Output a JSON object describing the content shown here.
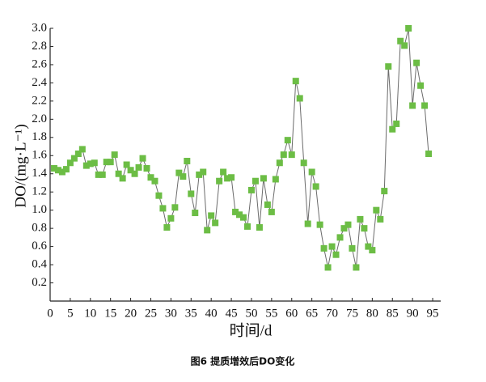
{
  "chart_data": {
    "type": "line",
    "caption": "图6 提质增效后DO变化",
    "x_label": "时间/d",
    "y_label": "DO/(mg·L⁻¹)",
    "x": [
      1,
      2,
      3,
      4,
      5,
      6,
      7,
      8,
      9,
      10,
      11,
      12,
      13,
      14,
      15,
      16,
      17,
      18,
      19,
      20,
      21,
      22,
      23,
      24,
      25,
      26,
      27,
      28,
      29,
      30,
      31,
      32,
      33,
      34,
      35,
      36,
      37,
      38,
      39,
      40,
      41,
      42,
      43,
      44,
      45,
      46,
      47,
      48,
      49,
      50,
      51,
      52,
      53,
      54,
      55,
      56,
      57,
      58,
      59,
      60,
      61,
      62,
      63,
      64,
      65,
      66,
      67,
      68,
      69,
      70,
      71,
      72,
      73,
      74,
      75,
      76,
      77,
      78,
      79,
      80,
      81,
      82,
      83,
      84,
      85,
      86,
      87,
      88,
      89,
      90,
      91,
      92,
      93,
      94
    ],
    "values": [
      1.46,
      1.44,
      1.42,
      1.45,
      1.52,
      1.57,
      1.62,
      1.67,
      1.49,
      1.51,
      1.52,
      1.39,
      1.39,
      1.53,
      1.53,
      1.61,
      1.4,
      1.35,
      1.5,
      1.44,
      1.4,
      1.47,
      1.57,
      1.46,
      1.36,
      1.32,
      1.16,
      1.02,
      0.81,
      0.91,
      1.03,
      1.41,
      1.37,
      1.54,
      1.18,
      0.97,
      1.39,
      1.42,
      0.78,
      0.94,
      0.86,
      1.32,
      1.42,
      1.35,
      1.36,
      0.98,
      0.95,
      0.92,
      0.82,
      1.22,
      1.32,
      0.81,
      1.35,
      1.06,
      0.98,
      1.34,
      1.52,
      1.61,
      1.77,
      1.61,
      2.42,
      2.23,
      1.52,
      0.85,
      1.42,
      1.26,
      0.84,
      0.58,
      0.37,
      0.6,
      0.51,
      0.7,
      0.8,
      0.84,
      0.58,
      0.37,
      0.9,
      0.8,
      0.6,
      0.56,
      1.0,
      0.9,
      1.21,
      2.58,
      1.89,
      1.95,
      2.86,
      2.81,
      3.0,
      2.15,
      2.62,
      2.37,
      2.15,
      1.62
    ],
    "line_color": "#6b6b6b",
    "marker_color": "#6cbd45",
    "xlim": [
      0,
      97
    ],
    "ylim": [
      0,
      3
    ],
    "xticks": [
      0,
      5,
      10,
      15,
      20,
      25,
      30,
      35,
      40,
      45,
      50,
      55,
      60,
      65,
      70,
      75,
      80,
      85,
      90,
      95
    ],
    "yticks": [
      0.2,
      0.4,
      0.6,
      0.8,
      {
        "value": 1,
        "label": "1.0"
      },
      1.2,
      1.4,
      1.6,
      1.8,
      {
        "value": 2,
        "label": "2.0"
      },
      2.2,
      2.4,
      2.6,
      2.8,
      {
        "value": 3,
        "label": "3.0"
      }
    ]
  }
}
